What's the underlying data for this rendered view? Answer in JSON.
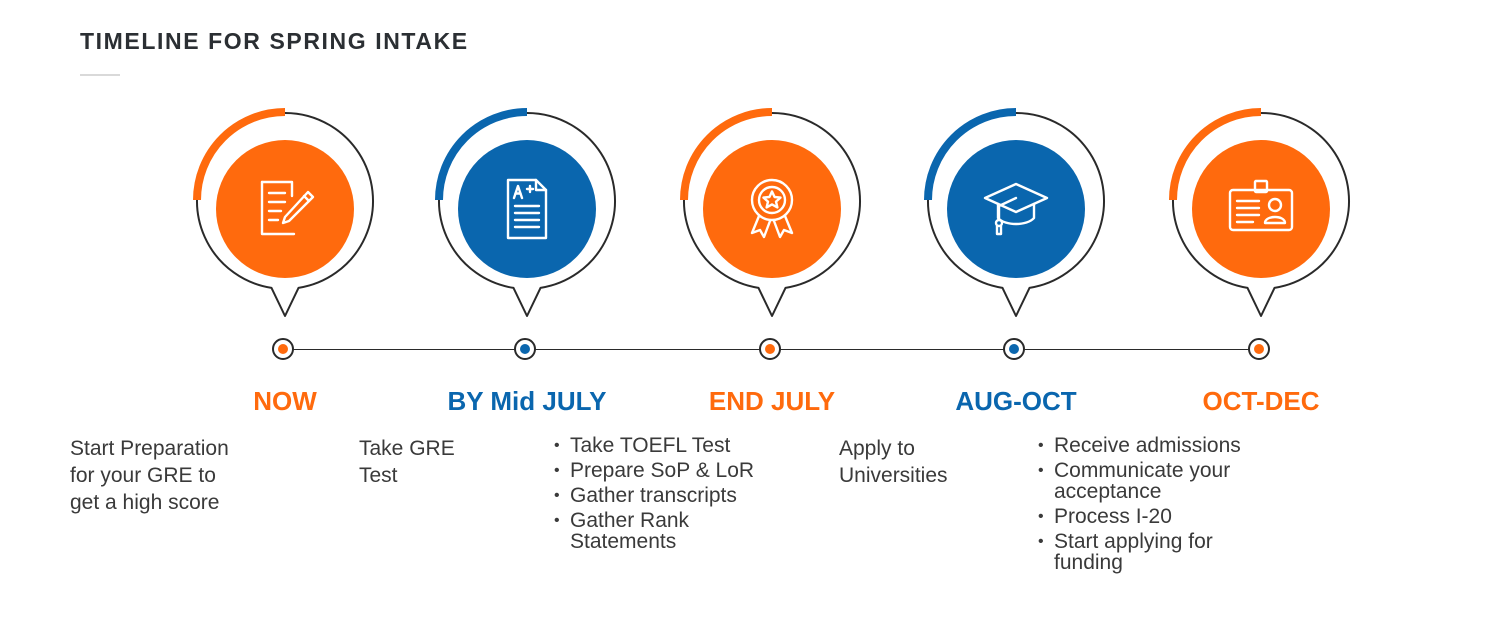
{
  "header": {
    "title": "TIMELINE FOR SPRING INTAKE"
  },
  "colors": {
    "orange": "#FF6A0D",
    "blue": "#0A66AE",
    "line": "#2a2a2a"
  },
  "steps": [
    {
      "label": "NOW",
      "color": "#FF6A0D",
      "icon": "document-pencil-icon",
      "lines": [
        "Start Preparation",
        "for your GRE to",
        "get a high score"
      ]
    },
    {
      "label": "BY Mid JULY",
      "color": "#0A66AE",
      "icon": "graded-paper-icon",
      "lines": [
        "Take GRE",
        "Test"
      ]
    },
    {
      "label": "END JULY",
      "color": "#FF6A0D",
      "icon": "award-badge-icon",
      "bullets": [
        "Take TOEFL Test",
        "Prepare SoP & LoR",
        "Gather transcripts",
        "Gather Rank Statements"
      ]
    },
    {
      "label": "AUG-OCT",
      "color": "#0A66AE",
      "icon": "graduation-cap-icon",
      "lines": [
        "Apply to",
        "Universities"
      ]
    },
    {
      "label": "OCT-DEC",
      "color": "#FF6A0D",
      "icon": "id-card-icon",
      "bullets": [
        "Receive admissions",
        "Communicate your acceptance",
        "Process I-20",
        "Start applying for funding"
      ]
    }
  ]
}
